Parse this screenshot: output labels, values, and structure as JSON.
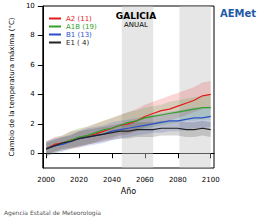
{
  "chart_data": {
    "type": "line",
    "title": "GALICIA",
    "subtitle": "ANUAL",
    "x_label": "Año",
    "y_label": "Cambio de la temperatura máxima (°C)",
    "logo": "AEMet",
    "source": "Agencia Estatal de Meteorología",
    "x": [
      2000,
      2005,
      2010,
      2015,
      2020,
      2025,
      2030,
      2035,
      2040,
      2045,
      2050,
      2055,
      2060,
      2065,
      2070,
      2075,
      2080,
      2085,
      2090,
      2095,
      2100
    ],
    "xlim": [
      1998,
      2102
    ],
    "xticks": [
      2000,
      2020,
      2040,
      2060,
      2080,
      2100
    ],
    "ylim": [
      -1,
      10
    ],
    "yticks": [
      0,
      2,
      4,
      6,
      8,
      10
    ],
    "grid": false,
    "legend": "upper left",
    "shaded_periods": [
      [
        2046,
        2065
      ],
      [
        2081,
        2100
      ]
    ],
    "series": [
      {
        "name": "A2 (11)",
        "color": "#e31a1c",
        "values": [
          0.3,
          0.6,
          0.7,
          0.9,
          1.0,
          1.2,
          1.3,
          1.5,
          1.7,
          1.9,
          2.0,
          2.2,
          2.5,
          2.7,
          2.9,
          3.0,
          3.2,
          3.4,
          3.6,
          3.9,
          4.0
        ],
        "band_low": [
          -0.2,
          0.1,
          0.2,
          0.3,
          0.4,
          0.6,
          0.7,
          0.9,
          1.0,
          1.2,
          1.3,
          1.5,
          1.8,
          2.0,
          2.1,
          2.2,
          2.4,
          2.6,
          2.8,
          3.0,
          3.1
        ],
        "band_high": [
          0.8,
          1.1,
          1.2,
          1.5,
          1.6,
          1.8,
          2.0,
          2.2,
          2.4,
          2.6,
          2.8,
          3.0,
          3.3,
          3.5,
          3.7,
          3.9,
          4.1,
          4.3,
          4.5,
          4.8,
          4.9
        ]
      },
      {
        "name": "A1B (19)",
        "color": "#33a02c",
        "values": [
          0.3,
          0.5,
          0.7,
          0.9,
          1.1,
          1.2,
          1.4,
          1.6,
          1.7,
          1.9,
          2.1,
          2.2,
          2.4,
          2.5,
          2.6,
          2.7,
          2.8,
          2.9,
          3.0,
          3.1,
          3.1
        ],
        "band_low": [
          -0.2,
          0.0,
          0.2,
          0.3,
          0.5,
          0.6,
          0.8,
          1.0,
          1.1,
          1.3,
          1.4,
          1.5,
          1.7,
          1.8,
          1.9,
          2.0,
          2.1,
          2.2,
          2.2,
          2.3,
          2.3
        ],
        "band_high": [
          0.8,
          1.0,
          1.2,
          1.5,
          1.7,
          1.8,
          2.0,
          2.2,
          2.4,
          2.6,
          2.8,
          2.9,
          3.1,
          3.2,
          3.3,
          3.5,
          3.6,
          3.7,
          3.8,
          3.9,
          4.0
        ]
      },
      {
        "name": "B1 (13)",
        "color": "#2b4fc9",
        "values": [
          0.3,
          0.5,
          0.6,
          0.8,
          1.0,
          1.1,
          1.2,
          1.3,
          1.5,
          1.6,
          1.7,
          1.8,
          1.9,
          2.0,
          2.1,
          2.2,
          2.2,
          2.3,
          2.4,
          2.4,
          2.5
        ],
        "band_low": [
          -0.2,
          0.0,
          0.1,
          0.3,
          0.4,
          0.5,
          0.6,
          0.7,
          0.9,
          1.0,
          1.1,
          1.2,
          1.3,
          1.4,
          1.4,
          1.5,
          1.5,
          1.6,
          1.7,
          1.7,
          1.8
        ],
        "band_high": [
          0.8,
          1.0,
          1.1,
          1.3,
          1.5,
          1.7,
          1.8,
          1.9,
          2.1,
          2.2,
          2.3,
          2.4,
          2.5,
          2.6,
          2.7,
          2.8,
          2.9,
          3.0,
          3.1,
          3.1,
          3.2
        ]
      },
      {
        "name": "E1 ( 4)",
        "color": "#222222",
        "values": [
          0.3,
          0.5,
          0.7,
          0.8,
          1.0,
          1.1,
          1.2,
          1.3,
          1.4,
          1.5,
          1.5,
          1.6,
          1.6,
          1.6,
          1.7,
          1.7,
          1.7,
          1.6,
          1.6,
          1.7,
          1.6
        ],
        "band_low": [
          -0.1,
          0.1,
          0.3,
          0.4,
          0.5,
          0.6,
          0.7,
          0.8,
          0.9,
          1.0,
          1.0,
          1.1,
          1.1,
          1.1,
          1.2,
          1.2,
          1.2,
          1.1,
          1.1,
          1.2,
          1.1
        ],
        "band_high": [
          0.7,
          0.9,
          1.1,
          1.2,
          1.5,
          1.6,
          1.7,
          1.8,
          1.9,
          2.0,
          2.0,
          2.1,
          2.1,
          2.1,
          2.2,
          2.2,
          2.2,
          2.1,
          2.1,
          2.2,
          2.1
        ]
      }
    ]
  }
}
